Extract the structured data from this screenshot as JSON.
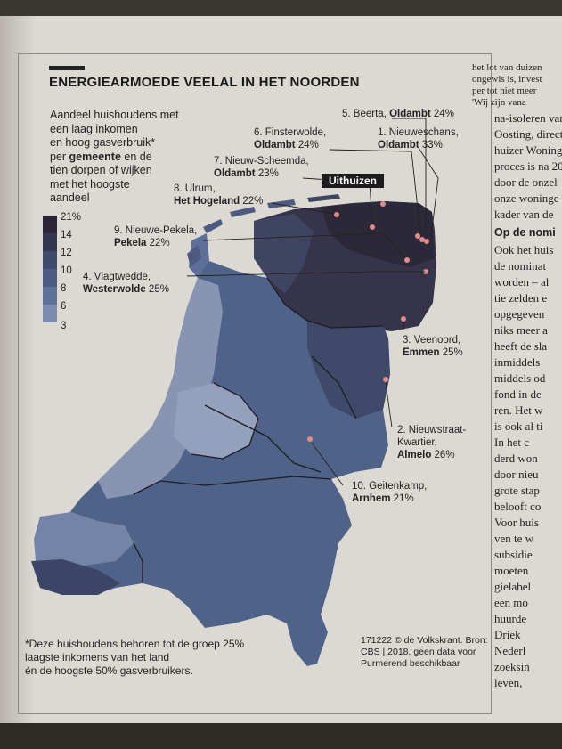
{
  "title": "ENERGIEARMOEDE VEELAL IN HET NOORDEN",
  "intro": {
    "line1": "Aandeel huishoudens met",
    "line2": "een laag inkomen",
    "line3": "en hoog gasverbruik*",
    "line4a": "per ",
    "line4b": "gemeente",
    "line4c": " en de",
    "line5": "tien dorpen of wijken",
    "line6": "met het hoogste",
    "line7": "aandeel"
  },
  "legend": {
    "ticks": [
      "21%",
      "14",
      "12",
      "10",
      "8",
      "6",
      "3"
    ],
    "colors": [
      "#2a2638",
      "#33374f",
      "#3e4a6c",
      "#4a5c82",
      "#5e7198",
      "#7a8cad",
      "#a7b4c7"
    ]
  },
  "places": [
    {
      "rank": "5. Beerta, ",
      "name": "Oldambt",
      "pct": " 24%"
    },
    {
      "rank": "6. Finsterwolde,",
      "name": "Oldambt",
      "pct": " 24%"
    },
    {
      "rank": "1. Nieuweschans,",
      "name": "Oldambt",
      "pct": " 33%"
    },
    {
      "rank": "7. Nieuw-Scheemda,",
      "name": "Oldambt",
      "pct": " 23%"
    },
    {
      "rank": "8. Ulrum,",
      "name": "Het Hogeland",
      "pct": " 22%"
    },
    {
      "rank": "9. Nieuwe-Pekela,",
      "name": "Pekela",
      "pct": " 22%"
    },
    {
      "rank": "4. Vlagtwedde,",
      "name": "Westerwolde",
      "pct": " 25%"
    },
    {
      "rank": "3. Veenoord,",
      "name": "Emmen",
      "pct": " 25%"
    },
    {
      "rank": "2. Nieuwstraat-",
      "rank2": "Kwartier,",
      "name": "Almelo",
      "pct": " 26%"
    },
    {
      "rank": "10. Geitenkamp,",
      "name": "Arnhem",
      "pct": " 21%"
    }
  ],
  "tag": "Uithuizen",
  "footnote": {
    "line1": "*Deze huishoudens behoren tot de groep 25%",
    "line2": "laagste inkomens van het land",
    "line3": "én de hoogste 50% gasverbruikers."
  },
  "credit": {
    "line1": "171222 © de Volkskrant. Bron:",
    "line2": "CBS | 2018, geen data voor",
    "line3": "Purmerend beschikbaar"
  },
  "column_top": [
    "het lot van duizen",
    "ongewis is, invest",
    "per tot niet meer",
    "'Wij zijn vana"
  ],
  "column": [
    "na-isoleren van",
    "Oosting, directe",
    "huizer Woning",
    "proces is na 20",
    "door de onzel",
    "onze woninge",
    "kader van de"
  ],
  "column_head": "Op de nomi",
  "column2": [
    "Ook het huis",
    "de nominat",
    "worden – al",
    "tie zelden e",
    "opgegeven",
    "niks meer a",
    "heeft de sla",
    "inmiddels",
    "middels od",
    "fond in de",
    "ren. Het w",
    "is ook al ti",
    "In het c",
    "derd won",
    "door nieu",
    "grote stap",
    "belooft co",
    "Voor huis",
    "ven te w",
    "subsidie",
    "moeten",
    "gielabel",
    "een mo",
    "huurde",
    "Driek",
    "Nederl",
    "zoeksin",
    "leven,"
  ]
}
